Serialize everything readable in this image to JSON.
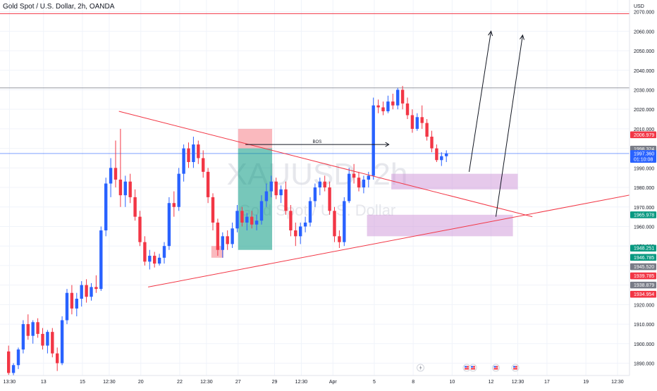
{
  "header": {
    "symbol_title": "Gold Spot / U.S. Dollar, 2h, OANDA",
    "currency": "USD"
  },
  "watermark": {
    "ticker": "XAUUSD, 2h",
    "name": "Gold Spot / U.S. Dollar"
  },
  "colors": {
    "up": "#2962ff",
    "down": "#f23645",
    "trendline": "#f23645",
    "zone": "#ce93d8",
    "long_profit": "#089981",
    "long_stop": "#f23645",
    "bos_line": "#131722",
    "hline_red": "#f23645",
    "hline_grey": "#9598a1",
    "last_price": "#2962ff"
  },
  "chart_data": {
    "type": "candlestick",
    "title": "Gold Spot / U.S. Dollar, 2h, OANDA",
    "ylabel": "USD",
    "ylim": [
      1884,
      2075
    ],
    "y_ticks": [
      1890,
      1900,
      1910,
      1920,
      1930,
      1940,
      1950,
      1960,
      1970,
      1980,
      1990,
      2000,
      2010,
      2020,
      2030,
      2040,
      2050,
      2060,
      2070
    ],
    "x_ticks": [
      {
        "label": "13:30",
        "pos": 0.5
      },
      {
        "label": "13",
        "pos": 7.5
      },
      {
        "label": "15",
        "pos": 15.5
      },
      {
        "label": "12:30",
        "pos": 21
      },
      {
        "label": "20",
        "pos": 27.5
      },
      {
        "label": "22",
        "pos": 35.5
      },
      {
        "label": "12:30",
        "pos": 41
      },
      {
        "label": "27",
        "pos": 47.5
      },
      {
        "label": "29",
        "pos": 55
      },
      {
        "label": "12:30",
        "pos": 60.5
      },
      {
        "label": "Apr",
        "pos": 67
      },
      {
        "label": "5",
        "pos": 75.5
      },
      {
        "label": "8",
        "pos": 83.5
      },
      {
        "label": "10",
        "pos": 91.5
      },
      {
        "label": "12",
        "pos": 99.5
      },
      {
        "label": "12:30",
        "pos": 105
      },
      {
        "label": "17",
        "pos": 111
      },
      {
        "label": "19",
        "pos": 119
      },
      {
        "label": "12:30",
        "pos": 125.5
      }
    ],
    "candles": [
      {
        "o": 1896,
        "h": 1899,
        "l": 1884,
        "c": 1885
      },
      {
        "o": 1885,
        "h": 1890,
        "l": 1883,
        "c": 1889
      },
      {
        "o": 1889,
        "h": 1898,
        "l": 1887,
        "c": 1897
      },
      {
        "o": 1897,
        "h": 1912,
        "l": 1895,
        "c": 1910
      },
      {
        "o": 1910,
        "h": 1915,
        "l": 1902,
        "c": 1904
      },
      {
        "o": 1904,
        "h": 1912,
        "l": 1900,
        "c": 1911
      },
      {
        "o": 1911,
        "h": 1913,
        "l": 1903,
        "c": 1905
      },
      {
        "o": 1905,
        "h": 1908,
        "l": 1897,
        "c": 1899
      },
      {
        "o": 1899,
        "h": 1907,
        "l": 1895,
        "c": 1906
      },
      {
        "o": 1906,
        "h": 1908,
        "l": 1893,
        "c": 1895
      },
      {
        "o": 1895,
        "h": 1898,
        "l": 1886,
        "c": 1890
      },
      {
        "o": 1890,
        "h": 1914,
        "l": 1889,
        "c": 1912
      },
      {
        "o": 1912,
        "h": 1928,
        "l": 1910,
        "c": 1926
      },
      {
        "o": 1926,
        "h": 1930,
        "l": 1915,
        "c": 1918
      },
      {
        "o": 1918,
        "h": 1926,
        "l": 1914,
        "c": 1923
      },
      {
        "o": 1923,
        "h": 1932,
        "l": 1919,
        "c": 1930
      },
      {
        "o": 1930,
        "h": 1933,
        "l": 1921,
        "c": 1924
      },
      {
        "o": 1924,
        "h": 1931,
        "l": 1922,
        "c": 1929
      },
      {
        "o": 1929,
        "h": 1935,
        "l": 1926,
        "c": 1928
      },
      {
        "o": 1928,
        "h": 1960,
        "l": 1927,
        "c": 1958
      },
      {
        "o": 1958,
        "h": 1985,
        "l": 1955,
        "c": 1982
      },
      {
        "o": 1982,
        "h": 1995,
        "l": 1975,
        "c": 1990
      },
      {
        "o": 1990,
        "h": 2004,
        "l": 1980,
        "c": 1984
      },
      {
        "o": 1984,
        "h": 2010,
        "l": 1970,
        "c": 1976
      },
      {
        "o": 1976,
        "h": 1986,
        "l": 1970,
        "c": 1983
      },
      {
        "o": 1983,
        "h": 1987,
        "l": 1972,
        "c": 1975
      },
      {
        "o": 1975,
        "h": 1979,
        "l": 1963,
        "c": 1965
      },
      {
        "o": 1965,
        "h": 1968,
        "l": 1950,
        "c": 1952
      },
      {
        "o": 1952,
        "h": 1955,
        "l": 1940,
        "c": 1942
      },
      {
        "o": 1942,
        "h": 1948,
        "l": 1938,
        "c": 1945
      },
      {
        "o": 1945,
        "h": 1947,
        "l": 1939,
        "c": 1941
      },
      {
        "o": 1941,
        "h": 1946,
        "l": 1940,
        "c": 1944
      },
      {
        "o": 1944,
        "h": 1952,
        "l": 1941,
        "c": 1950
      },
      {
        "o": 1950,
        "h": 1975,
        "l": 1948,
        "c": 1972
      },
      {
        "o": 1972,
        "h": 1978,
        "l": 1965,
        "c": 1970
      },
      {
        "o": 1970,
        "h": 1990,
        "l": 1968,
        "c": 1987
      },
      {
        "o": 1987,
        "h": 2002,
        "l": 1983,
        "c": 2000
      },
      {
        "o": 2000,
        "h": 2003,
        "l": 1990,
        "c": 1993
      },
      {
        "o": 1993,
        "h": 2006,
        "l": 1990,
        "c": 2002
      },
      {
        "o": 2002,
        "h": 2004,
        "l": 1992,
        "c": 1995
      },
      {
        "o": 1995,
        "h": 1999,
        "l": 1985,
        "c": 1988
      },
      {
        "o": 1988,
        "h": 1990,
        "l": 1972,
        "c": 1975
      },
      {
        "o": 1975,
        "h": 1977,
        "l": 1958,
        "c": 1962
      },
      {
        "o": 1962,
        "h": 1964,
        "l": 1945,
        "c": 1948
      },
      {
        "o": 1948,
        "h": 1957,
        "l": 1944,
        "c": 1955
      },
      {
        "o": 1955,
        "h": 1958,
        "l": 1948,
        "c": 1951
      },
      {
        "o": 1951,
        "h": 1962,
        "l": 1949,
        "c": 1959
      },
      {
        "o": 1959,
        "h": 1971,
        "l": 1957,
        "c": 1968
      },
      {
        "o": 1968,
        "h": 1970,
        "l": 1960,
        "c": 1962
      },
      {
        "o": 1962,
        "h": 1967,
        "l": 1958,
        "c": 1965
      },
      {
        "o": 1965,
        "h": 1968,
        "l": 1959,
        "c": 1961
      },
      {
        "o": 1961,
        "h": 1966,
        "l": 1958,
        "c": 1963
      },
      {
        "o": 1963,
        "h": 1976,
        "l": 1961,
        "c": 1973
      },
      {
        "o": 1973,
        "h": 1982,
        "l": 1970,
        "c": 1978
      },
      {
        "o": 1978,
        "h": 1986,
        "l": 1975,
        "c": 1983
      },
      {
        "o": 1983,
        "h": 1985,
        "l": 1974,
        "c": 1976
      },
      {
        "o": 1976,
        "h": 1981,
        "l": 1972,
        "c": 1979
      },
      {
        "o": 1979,
        "h": 1983,
        "l": 1966,
        "c": 1968
      },
      {
        "o": 1968,
        "h": 1971,
        "l": 1955,
        "c": 1958
      },
      {
        "o": 1958,
        "h": 1962,
        "l": 1950,
        "c": 1955
      },
      {
        "o": 1955,
        "h": 1962,
        "l": 1951,
        "c": 1960
      },
      {
        "o": 1960,
        "h": 1965,
        "l": 1957,
        "c": 1962
      },
      {
        "o": 1962,
        "h": 1975,
        "l": 1960,
        "c": 1973
      },
      {
        "o": 1973,
        "h": 1982,
        "l": 1970,
        "c": 1980
      },
      {
        "o": 1980,
        "h": 1985,
        "l": 1976,
        "c": 1983
      },
      {
        "o": 1983,
        "h": 1986,
        "l": 1978,
        "c": 1980
      },
      {
        "o": 1980,
        "h": 1983,
        "l": 1966,
        "c": 1968
      },
      {
        "o": 1968,
        "h": 1970,
        "l": 1952,
        "c": 1955
      },
      {
        "o": 1955,
        "h": 1958,
        "l": 1949,
        "c": 1952
      },
      {
        "o": 1952,
        "h": 1975,
        "l": 1950,
        "c": 1973
      },
      {
        "o": 1973,
        "h": 1990,
        "l": 1972,
        "c": 1987
      },
      {
        "o": 1987,
        "h": 1992,
        "l": 1982,
        "c": 1985
      },
      {
        "o": 1985,
        "h": 1988,
        "l": 1978,
        "c": 1980
      },
      {
        "o": 1980,
        "h": 1986,
        "l": 1977,
        "c": 1984
      },
      {
        "o": 1984,
        "h": 1988,
        "l": 1980,
        "c": 1986
      },
      {
        "o": 1986,
        "h": 2026,
        "l": 1984,
        "c": 2022
      },
      {
        "o": 2022,
        "h": 2025,
        "l": 2018,
        "c": 2021
      },
      {
        "o": 2021,
        "h": 2024,
        "l": 2017,
        "c": 2019
      },
      {
        "o": 2019,
        "h": 2027,
        "l": 2018,
        "c": 2024
      },
      {
        "o": 2024,
        "h": 2028,
        "l": 2020,
        "c": 2022
      },
      {
        "o": 2022,
        "h": 2031,
        "l": 2020,
        "c": 2030
      },
      {
        "o": 2030,
        "h": 2032,
        "l": 2020,
        "c": 2023
      },
      {
        "o": 2023,
        "h": 2026,
        "l": 2015,
        "c": 2017
      },
      {
        "o": 2017,
        "h": 2020,
        "l": 2008,
        "c": 2010
      },
      {
        "o": 2010,
        "h": 2018,
        "l": 2009,
        "c": 2016
      },
      {
        "o": 2016,
        "h": 2022,
        "l": 2010,
        "c": 2013
      },
      {
        "o": 2013,
        "h": 2015,
        "l": 2004,
        "c": 2006
      },
      {
        "o": 2006,
        "h": 2009,
        "l": 1998,
        "c": 2000
      },
      {
        "o": 2000,
        "h": 2002,
        "l": 1993,
        "c": 1994
      },
      {
        "o": 1994,
        "h": 1998,
        "l": 1991,
        "c": 1996
      },
      {
        "o": 1996,
        "h": 1999,
        "l": 1993,
        "c": 1997.36
      }
    ],
    "horizontal_lines": [
      {
        "price": 2069,
        "color": "#f23645"
      },
      {
        "price": 2031,
        "color": "#9598a1"
      }
    ],
    "trendlines": [
      {
        "from": [
          23,
          2019
        ],
        "to": [
          108,
          1965
        ]
      },
      {
        "from": [
          29,
          1929
        ],
        "to": [
          132,
          1978
        ]
      }
    ],
    "zones": [
      {
        "x_from": 79,
        "x_to": 105,
        "top": 1987,
        "bottom": 1979
      },
      {
        "x_from": 74,
        "x_to": 104,
        "top": 1966,
        "bottom": 1955
      }
    ],
    "long_position": {
      "x_from": 47.5,
      "x_to": 54.5,
      "entry": 2000,
      "target": 1948,
      "stop": 2010
    },
    "stop_box_left": {
      "x_from": 42,
      "x_to": 44.5,
      "top": 1950,
      "bottom": 1944
    },
    "bos": {
      "label": "BOS",
      "x_from": 49,
      "x_to": 78.5,
      "price": 2002
    },
    "arrows": [
      {
        "from": [
          95,
          1988
        ],
        "to": [
          99.5,
          2060
        ]
      },
      {
        "from": [
          100.5,
          1965
        ],
        "to": [
          106,
          2058
        ]
      }
    ],
    "price_labels": [
      {
        "text": "2006.979",
        "price": 2006.979,
        "bg": "#f23645",
        "fg": "#ffffff"
      },
      {
        "text": "1998.324",
        "price": 1999.6,
        "bg": "#787b86",
        "fg": "#ffffff"
      },
      {
        "text": "1997.360",
        "price": 1997.36,
        "bg": "#2962ff",
        "fg": "#ffffff"
      },
      {
        "text": "01:10:08",
        "price": 1994.4,
        "bg": "#2962ff",
        "fg": "#ffffff"
      },
      {
        "text": "1965.978",
        "price": 1965.978,
        "bg": "#089981",
        "fg": "#ffffff"
      },
      {
        "text": "1948.251",
        "price": 1948.9,
        "bg": "#089981",
        "fg": "#ffffff"
      },
      {
        "text": "1946.785",
        "price": 1944.2,
        "bg": "#089981",
        "fg": "#ffffff"
      },
      {
        "text": "1945.520",
        "price": 1939.4,
        "bg": "#787b86",
        "fg": "#ffffff"
      },
      {
        "text": "1939.785",
        "price": 1934.7,
        "bg": "#f23645",
        "fg": "#ffffff"
      },
      {
        "text": "1938.879",
        "price": 1930.0,
        "bg": "#787b86",
        "fg": "#ffffff"
      },
      {
        "text": "1934.954",
        "price": 1925.3,
        "bg": "#f23645",
        "fg": "#ffffff"
      }
    ],
    "last_price": 1997.36,
    "event_icons": [
      {
        "pos": 85,
        "type": "lightning"
      },
      {
        "pos": 94.5,
        "type": "flag"
      },
      {
        "pos": 95.8,
        "type": "flag"
      },
      {
        "pos": 100.5,
        "type": "flag"
      },
      {
        "pos": 104.5,
        "type": "flag"
      }
    ]
  }
}
